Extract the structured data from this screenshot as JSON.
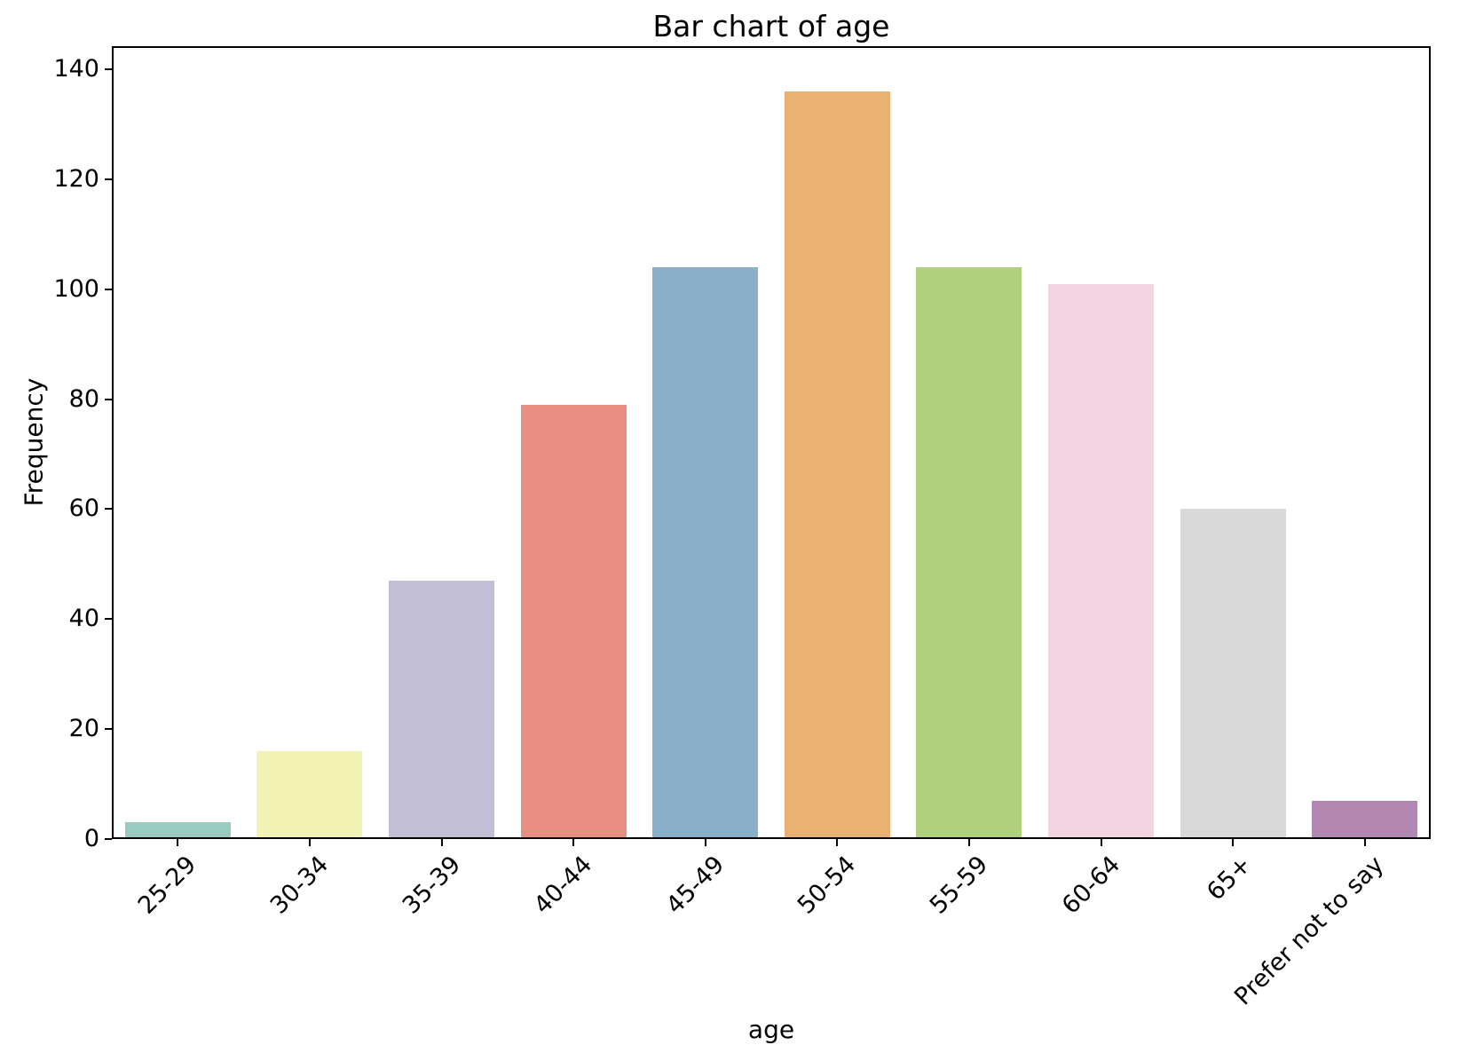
{
  "figure": {
    "background_color": "#ffffff",
    "spine_color": "#000000",
    "text_color": "#000000"
  },
  "chart_data": {
    "type": "bar",
    "title": "Bar chart of age",
    "xlabel": "age",
    "ylabel": "Frequency",
    "categories": [
      "25-29",
      "30-34",
      "35-39",
      "40-44",
      "45-49",
      "50-54",
      "55-59",
      "60-64",
      "65+",
      "Prefer not to say"
    ],
    "values": [
      3,
      16,
      47,
      79,
      104,
      136,
      104,
      101,
      60,
      7
    ],
    "bar_colors": [
      "#99cbc0",
      "#f2f2b5",
      "#c1bed6",
      "#e88e83",
      "#8aafc9",
      "#e9b273",
      "#afd07c",
      "#f5d4e2",
      "#d9d9d9",
      "#b288b3"
    ],
    "yticks": [
      0,
      20,
      40,
      60,
      80,
      100,
      120,
      140
    ],
    "ylim": [
      0,
      144.2
    ],
    "bar_width_fraction": 0.8,
    "xtick_rotation_deg": 45,
    "grid": false,
    "legend": null
  }
}
